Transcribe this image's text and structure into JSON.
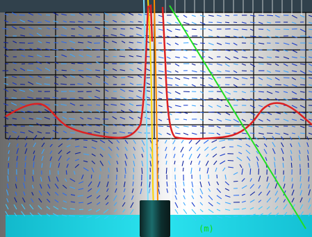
{
  "scene": {
    "description_text": "",
    "bottom_label": "(m)",
    "colors": {
      "top_bar": "#3a4a55",
      "background_left": "#6f6f6f",
      "background_center": "#ffffff",
      "background_right": "#b0b0b0",
      "grid_black": "#000000",
      "grid_white": "#ffffff",
      "vector_dark": "#0a1a8a",
      "vector_mid": "#2b5bd9",
      "vector_light": "#3cc9ff",
      "cyan_band": "#19d7e6",
      "red_curve": "#e01e1e",
      "green_line": "#1ee01e",
      "jet_yellow": "#ffd400",
      "jet_orange": "#ff8c00",
      "label_green": "#0fda0f",
      "nozzle_dark": "#0e2b2b",
      "nozzle_light": "#1b6d6d"
    }
  }
}
